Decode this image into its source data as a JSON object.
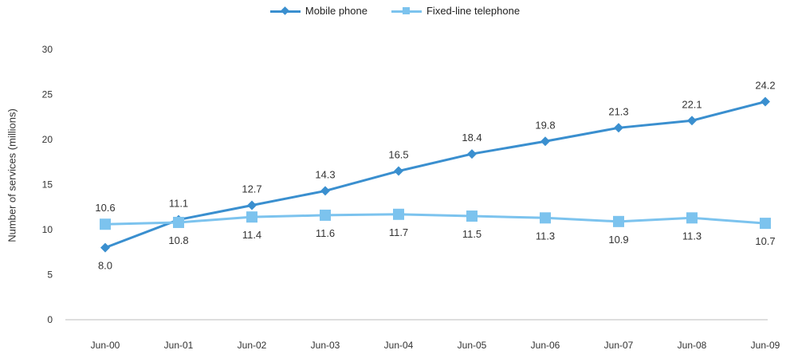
{
  "chart_data": {
    "type": "line",
    "categories": [
      "Jun-00",
      "Jun-01",
      "Jun-02",
      "Jun-03",
      "Jun-04",
      "Jun-05",
      "Jun-06",
      "Jun-07",
      "Jun-08",
      "Jun-09"
    ],
    "series": [
      {
        "name": "Mobile phone",
        "color": "#3a8fcf",
        "marker": "diamond",
        "values": [
          8.0,
          11.1,
          12.7,
          14.3,
          16.5,
          18.4,
          19.8,
          21.3,
          22.1,
          24.2
        ],
        "labels": [
          "8.0",
          "11.1",
          "12.7",
          "14.3",
          "16.5",
          "18.4",
          "19.8",
          "21.3",
          "22.1",
          "24.2"
        ],
        "label_position": [
          "below",
          "above",
          "above",
          "above",
          "above",
          "above",
          "above",
          "above",
          "above",
          "above"
        ]
      },
      {
        "name": "Fixed-line telephone",
        "color": "#7cc3ee",
        "marker": "square",
        "values": [
          10.6,
          10.8,
          11.4,
          11.6,
          11.7,
          11.5,
          11.3,
          10.9,
          11.3,
          10.7
        ],
        "labels": [
          "10.6",
          "10.8",
          "11.4",
          "11.6",
          "11.7",
          "11.5",
          "11.3",
          "10.9",
          "11.3",
          "10.7"
        ],
        "label_position": [
          "above",
          "below",
          "below",
          "below",
          "below",
          "below",
          "below",
          "below",
          "below",
          "below"
        ]
      }
    ],
    "ylabel": "Number of services (millions)",
    "xlabel": "",
    "ylim": [
      0,
      30
    ],
    "yticks": [
      "0",
      "5",
      "10",
      "15",
      "20",
      "25",
      "30"
    ],
    "grid": false,
    "legend_position": "top-center"
  }
}
